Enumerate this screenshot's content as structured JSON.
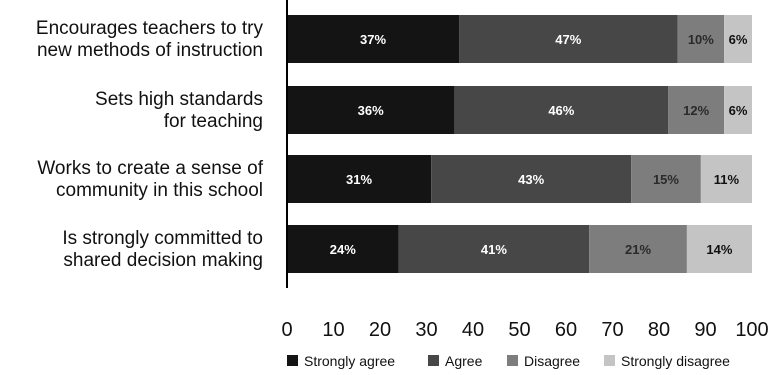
{
  "chart_data": {
    "type": "bar",
    "orientation": "horizontal",
    "stacked": true,
    "categories": [
      [
        "Encourages teachers to try",
        "new methods of instruction"
      ],
      [
        "Sets high standards",
        "for teaching"
      ],
      [
        "Works to create a sense of",
        "community in this school"
      ],
      [
        "Is strongly committed to",
        "shared decision making"
      ]
    ],
    "series": [
      {
        "name": "Strongly agree",
        "color": "#141414",
        "label_color": "#ffffff",
        "values": [
          37,
          36,
          31,
          24
        ],
        "labels": [
          "37%",
          "36%",
          "31%",
          "24%"
        ]
      },
      {
        "name": "Agree",
        "color": "#474747",
        "label_color": "#ffffff",
        "values": [
          47,
          46,
          43,
          41
        ],
        "labels": [
          "47%",
          "46%",
          "43%",
          "41%"
        ]
      },
      {
        "name": "Disagree",
        "color": "#7d7d7d",
        "label_color": "#2a2a2a",
        "values": [
          10,
          12,
          15,
          21
        ],
        "labels": [
          "10%",
          "12%",
          "15%",
          "21%"
        ]
      },
      {
        "name": "Strongly disagree",
        "color": "#c4c4c4",
        "label_color": "#111111",
        "values": [
          6,
          6,
          11,
          14
        ],
        "labels": [
          "6%",
          "6%",
          "11%",
          "14%"
        ]
      }
    ],
    "xlim": [
      0,
      100
    ],
    "xticks": [
      0,
      10,
      20,
      30,
      40,
      50,
      60,
      70,
      80,
      90,
      100
    ],
    "title": "",
    "xlabel": "",
    "ylabel": "",
    "grid": false,
    "legend": "bottom"
  }
}
